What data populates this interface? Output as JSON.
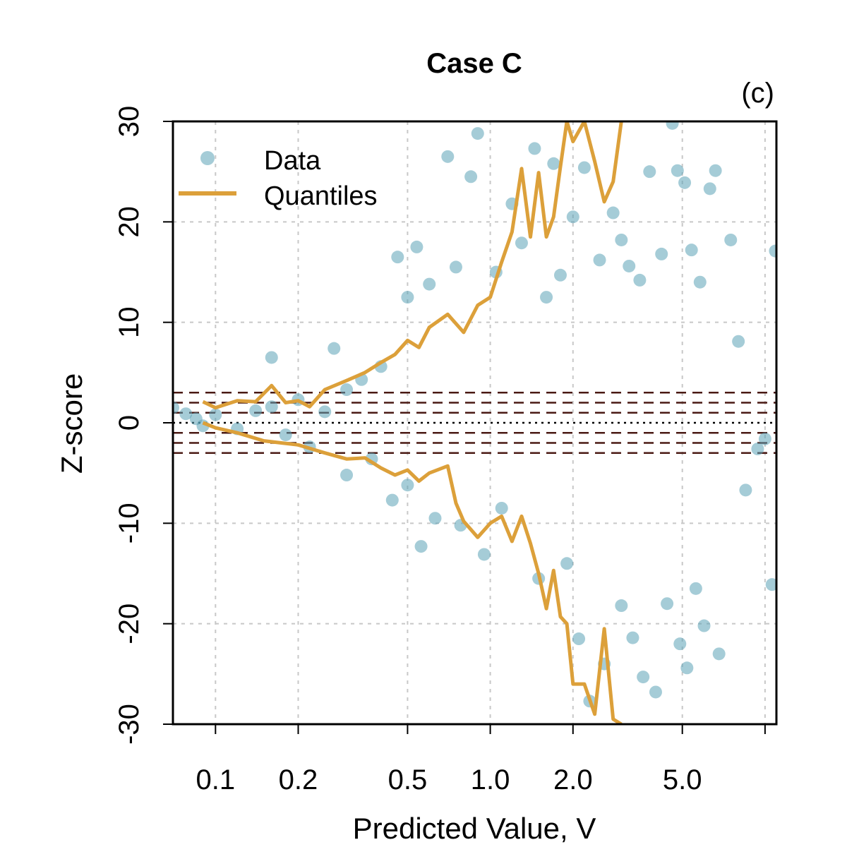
{
  "chart_data": {
    "type": "scatter",
    "title": "Case C",
    "panel_label": "(c)",
    "xlabel": "Predicted Value, V",
    "ylabel": "Z-score",
    "x_scale": "log",
    "xlim": [
      0.07,
      11.0
    ],
    "ylim": [
      -30,
      30
    ],
    "x_ticks": [
      0.1,
      0.2,
      0.5,
      1.0,
      2.0,
      5.0
    ],
    "x_tick_labels": [
      "0.1",
      "0.2",
      "0.5",
      "1.0",
      "2.0",
      "5.0"
    ],
    "y_ticks": [
      -30,
      -20,
      -10,
      0,
      10,
      20,
      30
    ],
    "y_tick_labels": [
      "-30",
      "-20",
      "-10",
      "0",
      "10",
      "20",
      "30"
    ],
    "x_grid": [
      0.1,
      0.2,
      0.5,
      1.0,
      2.0,
      5.0,
      10.0
    ],
    "y_grid": [
      -20,
      -10,
      10,
      20
    ],
    "grid": true,
    "legend": {
      "position": "top-left",
      "entries": [
        {
          "label": "Data",
          "kind": "point"
        },
        {
          "label": "Quantiles",
          "kind": "line"
        }
      ]
    },
    "reference_lines": {
      "dotted": [
        0
      ],
      "dashed": [
        -3,
        -2,
        -1,
        1,
        2,
        3
      ]
    },
    "colors": {
      "points": "#5ba3b6",
      "quantiles": "#dca03a",
      "reference": "#4a1a14",
      "grid": "#c8c8c8"
    },
    "series": [
      {
        "name": "Data",
        "kind": "scatter",
        "points": [
          [
            0.07,
            1.5
          ],
          [
            0.078,
            0.9
          ],
          [
            0.085,
            0.4
          ],
          [
            0.09,
            -0.3
          ],
          [
            0.1,
            0.8
          ],
          [
            0.12,
            -0.6
          ],
          [
            0.14,
            1.2
          ],
          [
            0.16,
            6.5
          ],
          [
            0.16,
            1.6
          ],
          [
            0.18,
            -1.2
          ],
          [
            0.2,
            2.3
          ],
          [
            0.22,
            -2.4
          ],
          [
            0.25,
            1.1
          ],
          [
            0.27,
            7.4
          ],
          [
            0.3,
            3.3
          ],
          [
            0.3,
            -5.2
          ],
          [
            0.34,
            4.3
          ],
          [
            0.37,
            -3.6
          ],
          [
            0.4,
            5.6
          ],
          [
            0.44,
            -7.7
          ],
          [
            0.46,
            16.5
          ],
          [
            0.5,
            12.5
          ],
          [
            0.5,
            -6.2
          ],
          [
            0.54,
            17.5
          ],
          [
            0.56,
            -12.3
          ],
          [
            0.6,
            13.8
          ],
          [
            0.63,
            -9.5
          ],
          [
            0.7,
            26.5
          ],
          [
            0.75,
            15.5
          ],
          [
            0.78,
            -10.2
          ],
          [
            0.85,
            24.5
          ],
          [
            0.9,
            28.8
          ],
          [
            0.95,
            -13.1
          ],
          [
            1.05,
            15.0
          ],
          [
            1.1,
            -8.5
          ],
          [
            1.2,
            21.8
          ],
          [
            1.3,
            17.9
          ],
          [
            1.45,
            27.3
          ],
          [
            1.5,
            -15.5
          ],
          [
            1.6,
            12.5
          ],
          [
            1.7,
            25.8
          ],
          [
            1.8,
            14.7
          ],
          [
            1.9,
            -14.0
          ],
          [
            2.0,
            20.5
          ],
          [
            2.1,
            -21.5
          ],
          [
            2.2,
            25.4
          ],
          [
            2.3,
            -27.7
          ],
          [
            2.5,
            16.2
          ],
          [
            2.6,
            -24.0
          ],
          [
            2.8,
            20.9
          ],
          [
            3.0,
            18.2
          ],
          [
            3.0,
            -18.2
          ],
          [
            3.2,
            15.6
          ],
          [
            3.3,
            -21.4
          ],
          [
            3.5,
            14.2
          ],
          [
            3.6,
            -25.3
          ],
          [
            3.8,
            25.0
          ],
          [
            4.0,
            -26.8
          ],
          [
            4.2,
            16.8
          ],
          [
            4.4,
            -18.0
          ],
          [
            4.6,
            29.8
          ],
          [
            4.8,
            25.1
          ],
          [
            4.9,
            -22.0
          ],
          [
            5.1,
            23.9
          ],
          [
            5.2,
            -24.4
          ],
          [
            5.4,
            17.2
          ],
          [
            5.6,
            -16.5
          ],
          [
            5.8,
            14.0
          ],
          [
            6.0,
            -20.2
          ],
          [
            6.3,
            23.3
          ],
          [
            6.6,
            25.1
          ],
          [
            6.8,
            -23.0
          ],
          [
            7.5,
            18.2
          ],
          [
            8.0,
            8.1
          ],
          [
            8.5,
            -6.7
          ],
          [
            9.4,
            -2.6
          ],
          [
            10.0,
            -1.6
          ],
          [
            10.6,
            -16.1
          ],
          [
            10.9,
            17.1
          ]
        ]
      },
      {
        "name": "Quantiles",
        "kind": "line",
        "upper": [
          [
            0.09,
            2.1
          ],
          [
            0.1,
            1.5
          ],
          [
            0.12,
            2.2
          ],
          [
            0.14,
            2.1
          ],
          [
            0.16,
            3.7
          ],
          [
            0.18,
            2.0
          ],
          [
            0.2,
            2.2
          ],
          [
            0.22,
            1.6
          ],
          [
            0.25,
            3.3
          ],
          [
            0.3,
            4.2
          ],
          [
            0.35,
            5.0
          ],
          [
            0.4,
            6.0
          ],
          [
            0.45,
            6.8
          ],
          [
            0.5,
            8.2
          ],
          [
            0.55,
            7.5
          ],
          [
            0.6,
            9.5
          ],
          [
            0.7,
            10.8
          ],
          [
            0.8,
            9.0
          ],
          [
            0.9,
            11.7
          ],
          [
            1.0,
            12.5
          ],
          [
            1.1,
            16.0
          ],
          [
            1.2,
            19.0
          ],
          [
            1.3,
            25.3
          ],
          [
            1.4,
            18.5
          ],
          [
            1.5,
            24.9
          ],
          [
            1.6,
            18.5
          ],
          [
            1.7,
            20.5
          ],
          [
            1.8,
            25.5
          ],
          [
            1.9,
            30.0
          ],
          [
            2.0,
            28.0
          ],
          [
            2.2,
            30.0
          ],
          [
            2.4,
            26.0
          ],
          [
            2.6,
            22.0
          ],
          [
            2.8,
            24.0
          ],
          [
            3.0,
            30.0
          ]
        ],
        "lower": [
          [
            0.09,
            0.0
          ],
          [
            0.1,
            -0.5
          ],
          [
            0.12,
            -1.0
          ],
          [
            0.15,
            -1.8
          ],
          [
            0.2,
            -2.2
          ],
          [
            0.25,
            -3.0
          ],
          [
            0.3,
            -3.6
          ],
          [
            0.35,
            -3.5
          ],
          [
            0.4,
            -4.5
          ],
          [
            0.45,
            -5.2
          ],
          [
            0.5,
            -4.7
          ],
          [
            0.55,
            -5.8
          ],
          [
            0.6,
            -5.0
          ],
          [
            0.7,
            -4.3
          ],
          [
            0.75,
            -8.0
          ],
          [
            0.8,
            -9.8
          ],
          [
            0.9,
            -11.4
          ],
          [
            1.0,
            -10.0
          ],
          [
            1.1,
            -9.3
          ],
          [
            1.2,
            -11.8
          ],
          [
            1.3,
            -9.3
          ],
          [
            1.4,
            -12.0
          ],
          [
            1.5,
            -15.0
          ],
          [
            1.6,
            -18.5
          ],
          [
            1.7,
            -14.7
          ],
          [
            1.8,
            -19.3
          ],
          [
            1.9,
            -20.0
          ],
          [
            2.0,
            -26.0
          ],
          [
            2.2,
            -26.0
          ],
          [
            2.4,
            -29.0
          ],
          [
            2.6,
            -20.5
          ],
          [
            2.8,
            -29.5
          ],
          [
            3.0,
            -30.0
          ]
        ]
      }
    ]
  }
}
